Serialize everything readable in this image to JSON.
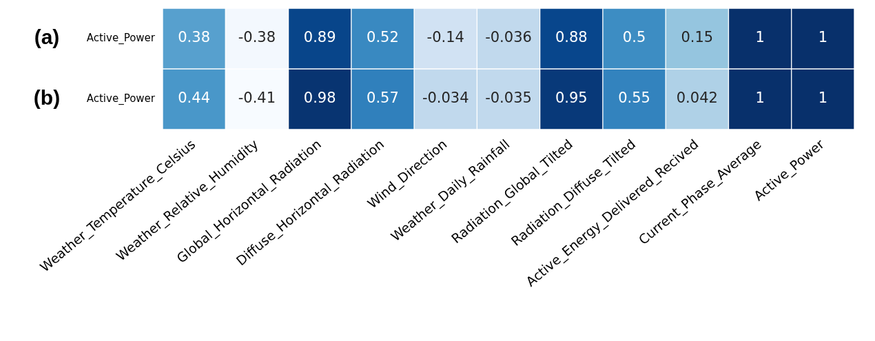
{
  "chart_data": {
    "type": "heatmap",
    "categories": [
      "Weather_Temperature_Celsius",
      "Weather_Relative_Humidity",
      "Global_Horizontal_Radiation",
      "Diffuse_Horizontal_Radiation",
      "Wind_Direction",
      "Weather_Daily_Rainfall",
      "Radiation_Global_Tilted",
      "Radiation_Diffuse_Tilted",
      "Active_Energy_Delivered_Recived",
      "Current_Phase_Average",
      "Active_Power"
    ],
    "y_categories": [
      "Active_Power",
      "Active_Power"
    ],
    "cells": [
      [
        0.38,
        -0.38,
        0.89,
        0.52,
        -0.14,
        -0.036,
        0.88,
        0.5,
        0.15,
        1,
        1
      ],
      [
        0.44,
        -0.41,
        0.98,
        0.57,
        -0.034,
        -0.035,
        0.95,
        0.55,
        0.042,
        1,
        1
      ]
    ],
    "data_labels": true,
    "annotations": [
      "(a)",
      "(b)"
    ]
  }
}
